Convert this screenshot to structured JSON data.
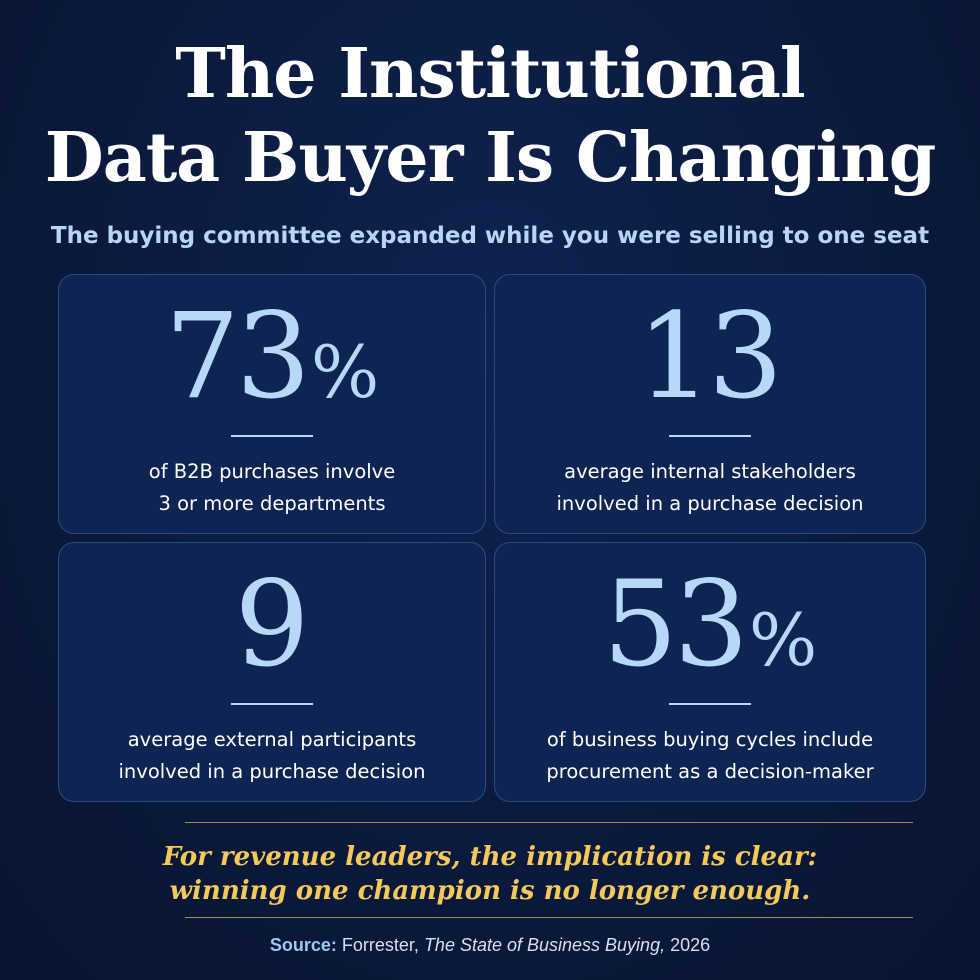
{
  "header": {
    "title_line1": "The Institutional",
    "title_line2": "Data Buyer Is Changing",
    "subtitle": "The buying committee expanded while you were selling to one seat"
  },
  "stats": [
    {
      "number": "73",
      "suffix": "%",
      "desc_line1": "of B2B purchases involve",
      "desc_line2": "3 or more departments"
    },
    {
      "number": "13",
      "suffix": "",
      "desc_line1": "average internal stakeholders",
      "desc_line2": "involved in a purchase decision"
    },
    {
      "number": "9",
      "suffix": "",
      "desc_line1": "average external participants",
      "desc_line2": "involved in a purchase decision"
    },
    {
      "number": "53",
      "suffix": "%",
      "desc_line1": "of business buying cycles include",
      "desc_line2": "procurement as a decision-maker"
    }
  ],
  "callout": {
    "line1": "For revenue leaders, the implication is clear:",
    "line2": "winning one champion is no longer enough."
  },
  "source": {
    "label": "Source:",
    "publisher": "Forrester,",
    "title": "The State of Business Buying,",
    "year": "2026"
  },
  "colors": {
    "background": "#0b1a3d",
    "card": "#0e2452",
    "stat_accent": "#b7d8f8",
    "callout": "#f2c95a"
  }
}
